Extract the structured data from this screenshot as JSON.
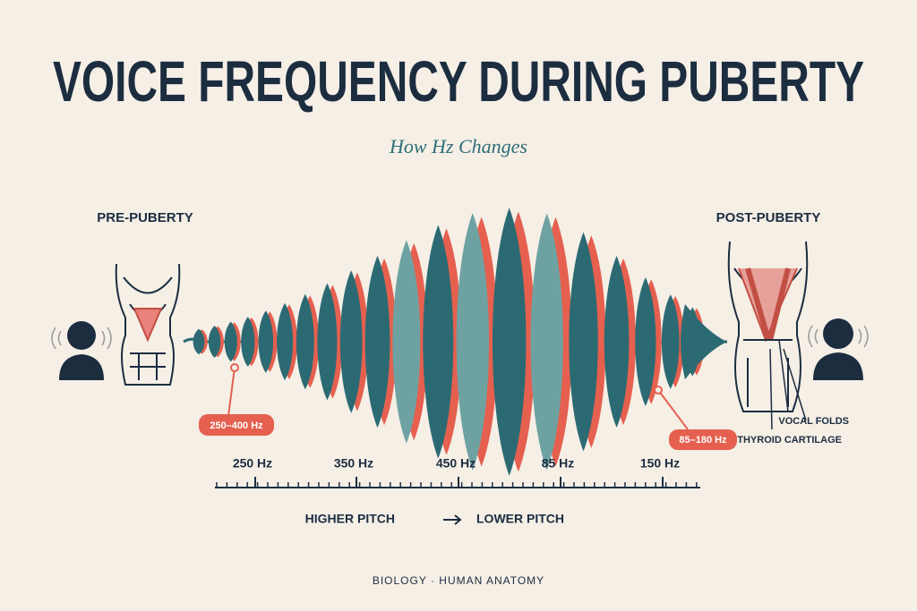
{
  "title": "VOICE FREQUENCY DURING PUBERTY",
  "subtitle": "How Hz Changes",
  "left": {
    "label": "PRE-PUBERTY",
    "range": "250–400 Hz"
  },
  "right": {
    "label": "POST-PUBERTY",
    "range": "85–180 Hz",
    "annotations": [
      "VOCAL FOLDS",
      "THYROID CARTILAGE"
    ]
  },
  "scale": {
    "labels": [
      "250 Hz",
      "350 Hz",
      "450 Hz",
      "85 Hz",
      "150 Hz"
    ],
    "caption_start": "HIGHER PITCH",
    "caption_end": "LOWER PITCH"
  },
  "footer": "BIOLOGY · HUMAN ANATOMY"
}
